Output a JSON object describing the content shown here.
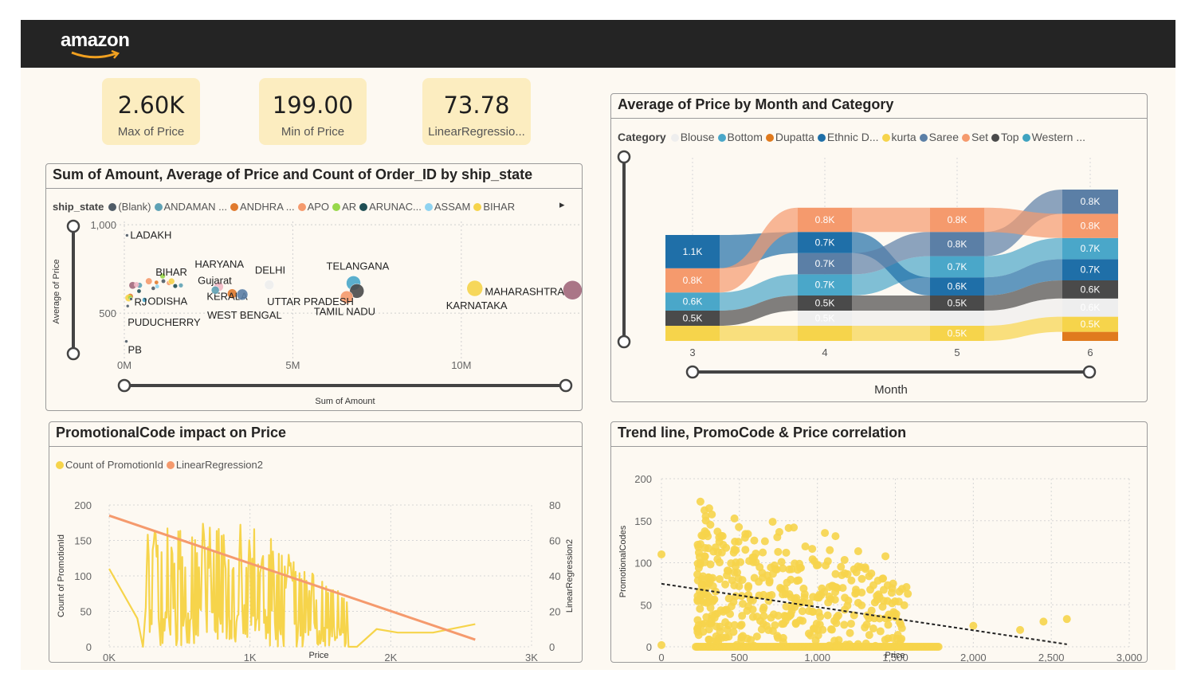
{
  "header": {
    "logo": "amazon"
  },
  "kpis": [
    {
      "value": "2.60K",
      "label": "Max of Price"
    },
    {
      "value": "199.00",
      "label": "Min of Price"
    },
    {
      "value": "73.78",
      "label": "LinearRegressio..."
    }
  ],
  "colors": {
    "topbar": "#242424",
    "background": "#fdf9f2",
    "kpi": "#fcedc0",
    "yellow": "#f6d44b",
    "orange": "#f59a6d"
  },
  "scatter_panel": {
    "title": "Sum of Amount, Average of Price and Count of Order_ID by ship_state",
    "legend_title": "ship_state",
    "legend": [
      {
        "label": "(Blank)",
        "color": "#4f5b66"
      },
      {
        "label": "ANDAMAN ...",
        "color": "#5fa2b5"
      },
      {
        "label": "ANDHRA ...",
        "color": "#e07a2e"
      },
      {
        "label": "APO",
        "color": "#f59a6d"
      },
      {
        "label": "AR",
        "color": "#98d84a"
      },
      {
        "label": "ARUNAC...",
        "color": "#1f4e54"
      },
      {
        "label": "ASSAM",
        "color": "#8fd3f0"
      },
      {
        "label": "BIHAR",
        "color": "#f6d44b"
      }
    ],
    "next_icon": "▸",
    "ylabel": "Average of Price",
    "xlabel": "Sum of Amount"
  },
  "month_panel": {
    "title": "Average of Price by Month and Category",
    "legend_title": "Category",
    "legend": [
      {
        "label": "Blouse",
        "color": "#eeeeee"
      },
      {
        "label": "Bottom",
        "color": "#4aa7c9"
      },
      {
        "label": "Dupatta",
        "color": "#e07a1e"
      },
      {
        "label": "Ethnic D...",
        "color": "#1f6fa8"
      },
      {
        "label": "kurta",
        "color": "#f6d44b"
      },
      {
        "label": "Saree",
        "color": "#5b7fa6"
      },
      {
        "label": "Set",
        "color": "#f59a6d"
      },
      {
        "label": "Top",
        "color": "#4a4a4a"
      },
      {
        "label": "Western ...",
        "color": "#3fa3c0"
      }
    ],
    "xlabel": "Month"
  },
  "promo_panel": {
    "title": "PromotionalCode impact on Price",
    "legend": [
      {
        "label": "Count of PromotionId",
        "color": "#f6d44b"
      },
      {
        "label": "LinearRegression2",
        "color": "#f59a6d"
      }
    ],
    "ylabel_left": "Count of PromotionId",
    "ylabel_right": "LinearRegression2",
    "xlabel": "Price"
  },
  "trend_panel": {
    "title": "Trend line, PromoCode & Price correlation",
    "ylabel": "PromotionalCodes",
    "xlabel": "Price"
  },
  "chart_data": [
    {
      "type": "scatter",
      "title": "Sum of Amount, Average of Price and Count of Order_ID by ship_state",
      "xlabel": "Sum of Amount",
      "ylabel": "Average of Price",
      "x_ticks": [
        "0M",
        "5M",
        "10M"
      ],
      "y_ticks": [
        "1,000",
        "500"
      ],
      "xlim": [
        0,
        14000000
      ],
      "ylim": [
        0,
        1100
      ],
      "points": [
        {
          "label": "MAHARASHTRA",
          "x": 13300000,
          "y": 630,
          "size": 12,
          "color": "#a2687c"
        },
        {
          "label": "KARNATAKA",
          "x": 10400000,
          "y": 640,
          "size": 10,
          "color": "#f6d44b"
        },
        {
          "label": "TELANGANA",
          "x": 6800000,
          "y": 670,
          "size": 9,
          "color": "#4aa7c9"
        },
        {
          "label": "TAMIL NADU",
          "x": 6900000,
          "y": 625,
          "size": 9,
          "color": "#4a4a4a"
        },
        {
          "label": "UTTAR PRADESH",
          "x": 6600000,
          "y": 590,
          "size": 8,
          "color": "#f59a6d"
        },
        {
          "label": "DELHI",
          "x": 4300000,
          "y": 660,
          "size": 6,
          "color": "#eeeeee"
        },
        {
          "label": "KERALA",
          "x": 3200000,
          "y": 610,
          "size": 6,
          "color": "#e07a2e"
        },
        {
          "label": "WEST BENGAL",
          "x": 3500000,
          "y": 605,
          "size": 7,
          "color": "#5b7fa6"
        },
        {
          "label": "HARYANA",
          "x": 2800000,
          "y": 650,
          "size": 6,
          "color": "#f2b8c6"
        },
        {
          "label": "Gujarat",
          "x": 2700000,
          "y": 630,
          "size": 5,
          "color": "#5fa2b5"
        },
        {
          "label": "BIHAR",
          "x": 1400000,
          "y": 680,
          "size": 4,
          "color": "#f6d44b"
        },
        {
          "label": "ODISHA",
          "x": 600000,
          "y": 575,
          "size": 3,
          "color": "#4aa7c9"
        },
        {
          "label": "RJ",
          "x": 200000,
          "y": 580,
          "size": 2,
          "color": "#4f5b66"
        },
        {
          "label": "PUDUCHERRY",
          "x": 100000,
          "y": 540,
          "size": 2,
          "color": "#4f5b66"
        },
        {
          "label": "LADAKH",
          "x": 80000,
          "y": 940,
          "size": 2,
          "color": "#4f5b66"
        },
        {
          "label": "PB",
          "x": 60000,
          "y": 340,
          "size": 2,
          "color": "#4f5b66"
        }
      ]
    },
    {
      "type": "area",
      "title": "Average of Price by Month and Category",
      "xlabel": "Month",
      "categories": [
        "3",
        "4",
        "5",
        "6"
      ],
      "segments": [
        {
          "month": "3",
          "items": [
            {
              "c": "kurta",
              "v": 0.5
            },
            {
              "c": "Top",
              "v": 0.5,
              "label": "0.5K"
            },
            {
              "c": "Bottom",
              "v": 0.6,
              "label": "0.6K"
            },
            {
              "c": "Set",
              "v": 0.8,
              "label": "0.8K"
            },
            {
              "c": "Ethnic D...",
              "v": 1.1,
              "label": "1.1K"
            }
          ]
        },
        {
          "month": "4",
          "items": [
            {
              "c": "kurta",
              "v": 0.5
            },
            {
              "c": "Blouse",
              "v": 0.5,
              "label": "0.5K"
            },
            {
              "c": "Top",
              "v": 0.5,
              "label": "0.5K"
            },
            {
              "c": "Bottom",
              "v": 0.7,
              "label": "0.7K"
            },
            {
              "c": "Saree",
              "v": 0.7,
              "label": "0.7K"
            },
            {
              "c": "Ethnic D...",
              "v": 0.7,
              "label": "0.7K"
            },
            {
              "c": "Set",
              "v": 0.8,
              "label": "0.8K"
            }
          ]
        },
        {
          "month": "5",
          "items": [
            {
              "c": "kurta",
              "v": 0.5,
              "label": "0.5K"
            },
            {
              "c": "Blouse",
              "v": 0.5
            },
            {
              "c": "Top",
              "v": 0.5,
              "label": "0.5K"
            },
            {
              "c": "Ethnic D...",
              "v": 0.6,
              "label": "0.6K"
            },
            {
              "c": "Bottom",
              "v": 0.7,
              "label": "0.7K"
            },
            {
              "c": "Saree",
              "v": 0.8,
              "label": "0.8K"
            },
            {
              "c": "Set",
              "v": 0.8,
              "label": "0.8K"
            }
          ]
        },
        {
          "month": "6",
          "items": [
            {
              "c": "Dupatta",
              "v": 0.3
            },
            {
              "c": "kurta",
              "v": 0.5,
              "label": "0.5K"
            },
            {
              "c": "Blouse",
              "v": 0.6,
              "label": "0.6K"
            },
            {
              "c": "Top",
              "v": 0.6,
              "label": "0.6K"
            },
            {
              "c": "Ethnic D...",
              "v": 0.7,
              "label": "0.7K"
            },
            {
              "c": "Bottom",
              "v": 0.7,
              "label": "0.7K"
            },
            {
              "c": "Set",
              "v": 0.8,
              "label": "0.8K"
            },
            {
              "c": "Saree",
              "v": 0.8,
              "label": "0.8K"
            }
          ]
        }
      ]
    },
    {
      "type": "line",
      "title": "PromotionalCode impact on Price",
      "xlabel": "Price",
      "ylabel": "Count of PromotionId",
      "y2label": "LinearRegression2",
      "x_ticks": [
        "0K",
        "1K",
        "2K",
        "3K"
      ],
      "xlim": [
        0,
        3000
      ],
      "y_ticks": [
        0,
        50,
        100,
        150,
        200
      ],
      "ylim": [
        0,
        200
      ],
      "y2_ticks": [
        0,
        20,
        40,
        60,
        80
      ],
      "y2lim": [
        0,
        80
      ],
      "series": [
        {
          "name": "Count of PromotionId",
          "type": "line",
          "smooth_outline": [
            [
              0,
              110
            ],
            [
              200,
              40
            ],
            [
              240,
              0
            ],
            [
              280,
              40
            ],
            [
              300,
              150
            ],
            [
              350,
              120
            ],
            [
              400,
              170
            ],
            [
              450,
              130
            ],
            [
              500,
              175
            ],
            [
              560,
              120
            ],
            [
              620,
              180
            ],
            [
              700,
              130
            ],
            [
              760,
              165
            ],
            [
              820,
              110
            ],
            [
              900,
              150
            ],
            [
              1000,
              130
            ],
            [
              1100,
              150
            ],
            [
              1200,
              110
            ],
            [
              1300,
              140
            ],
            [
              1400,
              100
            ],
            [
              1500,
              120
            ],
            [
              1600,
              70
            ],
            [
              1680,
              40
            ],
            [
              1700,
              0
            ],
            [
              1760,
              0
            ],
            [
              1900,
              25
            ],
            [
              2050,
              20
            ],
            [
              2300,
              20
            ],
            [
              2600,
              32
            ]
          ]
        },
        {
          "name": "LinearRegression2",
          "type": "line",
          "points": [
            [
              0,
              74
            ],
            [
              2600,
              4
            ]
          ]
        }
      ]
    },
    {
      "type": "scatter",
      "title": "Trend line, PromoCode & Price correlation",
      "xlabel": "Price",
      "ylabel": "PromotionalCodes",
      "x_ticks": [
        0,
        500,
        1000,
        1500,
        2000,
        2500,
        3000
      ],
      "xlim": [
        0,
        3000
      ],
      "y_ticks": [
        0,
        50,
        100,
        150,
        200
      ],
      "ylim": [
        0,
        200
      ],
      "trend": [
        [
          0,
          75
        ],
        [
          2600,
          3
        ]
      ],
      "outliers": [
        [
          0,
          110
        ],
        [
          0,
          2
        ],
        [
          1580,
          63
        ],
        [
          2000,
          25
        ],
        [
          2300,
          20
        ],
        [
          2450,
          30
        ],
        [
          2600,
          33
        ]
      ]
    }
  ]
}
